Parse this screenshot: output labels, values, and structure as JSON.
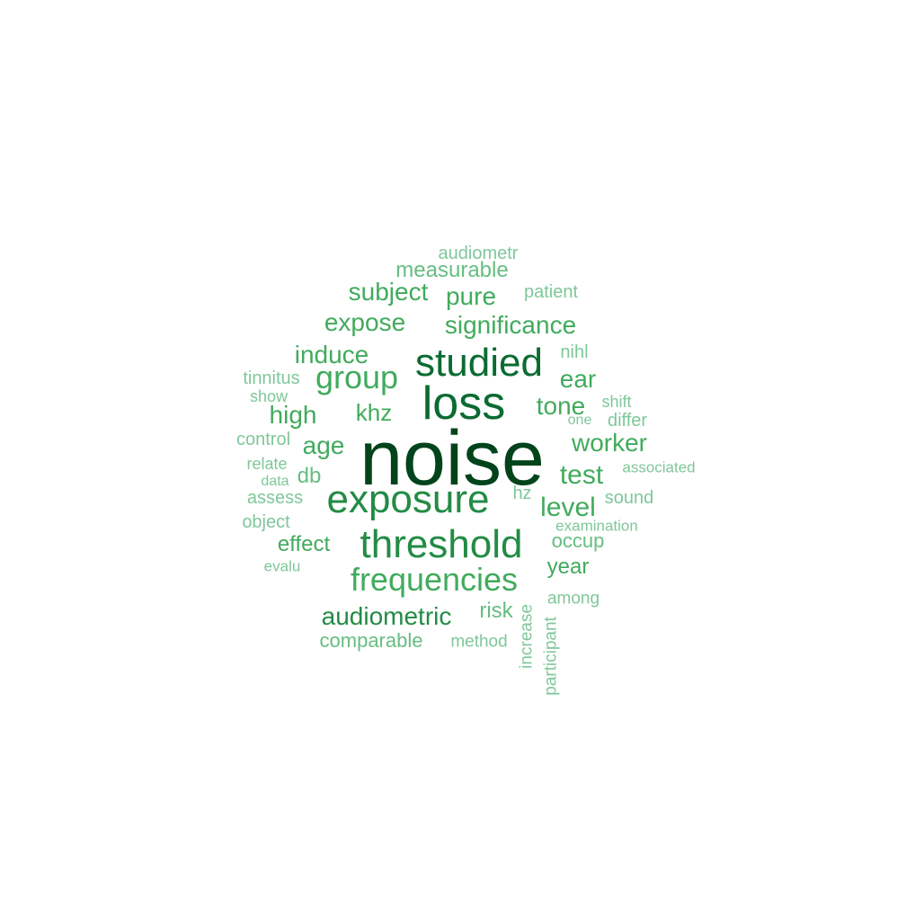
{
  "palette": {
    "darkest": "#00441b",
    "dark": "#0b6b32",
    "medium_dark": "#238b45",
    "medium": "#41ab5d",
    "light": "#66bd82",
    "lightest": "#7fc79a"
  },
  "words": [
    {
      "text": "noise",
      "color": "darkest"
    },
    {
      "text": "loss",
      "color": "dark"
    },
    {
      "text": "studied",
      "color": "dark"
    },
    {
      "text": "threshold",
      "color": "medium_dark"
    },
    {
      "text": "exposure",
      "color": "medium_dark"
    },
    {
      "text": "frequencies",
      "color": "medium"
    },
    {
      "text": "group",
      "color": "medium"
    },
    {
      "text": "audiometric",
      "color": "medium_dark"
    },
    {
      "text": "significance",
      "color": "medium"
    },
    {
      "text": "subject",
      "color": "medium"
    },
    {
      "text": "pure",
      "color": "medium"
    },
    {
      "text": "expose",
      "color": "medium"
    },
    {
      "text": "induce",
      "color": "medium"
    },
    {
      "text": "tone",
      "color": "medium"
    },
    {
      "text": "worker",
      "color": "medium"
    },
    {
      "text": "test",
      "color": "medium"
    },
    {
      "text": "level",
      "color": "medium"
    },
    {
      "text": "ear",
      "color": "medium"
    },
    {
      "text": "high",
      "color": "medium"
    },
    {
      "text": "khz",
      "color": "medium"
    },
    {
      "text": "age",
      "color": "medium"
    },
    {
      "text": "year",
      "color": "medium"
    },
    {
      "text": "effect",
      "color": "medium"
    },
    {
      "text": "comparable",
      "color": "light"
    },
    {
      "text": "measurable",
      "color": "light"
    },
    {
      "text": "risk",
      "color": "light"
    },
    {
      "text": "occup",
      "color": "light"
    },
    {
      "text": "db",
      "color": "light"
    },
    {
      "text": "patient",
      "color": "lightest"
    },
    {
      "text": "audiometr",
      "color": "lightest"
    },
    {
      "text": "nihl",
      "color": "lightest"
    },
    {
      "text": "tinnitus",
      "color": "lightest"
    },
    {
      "text": "show",
      "color": "lightest"
    },
    {
      "text": "shift",
      "color": "lightest"
    },
    {
      "text": "differ",
      "color": "lightest"
    },
    {
      "text": "one",
      "color": "lightest"
    },
    {
      "text": "control",
      "color": "lightest"
    },
    {
      "text": "relate",
      "color": "lightest"
    },
    {
      "text": "data",
      "color": "lightest"
    },
    {
      "text": "associated",
      "color": "lightest"
    },
    {
      "text": "assess",
      "color": "lightest"
    },
    {
      "text": "hz",
      "color": "lightest"
    },
    {
      "text": "sound",
      "color": "lightest"
    },
    {
      "text": "object",
      "color": "lightest"
    },
    {
      "text": "examination",
      "color": "lightest"
    },
    {
      "text": "evalu",
      "color": "lightest"
    },
    {
      "text": "among",
      "color": "lightest"
    },
    {
      "text": "method",
      "color": "lightest"
    },
    {
      "text": "increase",
      "color": "lightest"
    },
    {
      "text": "participant",
      "color": "lightest"
    }
  ]
}
